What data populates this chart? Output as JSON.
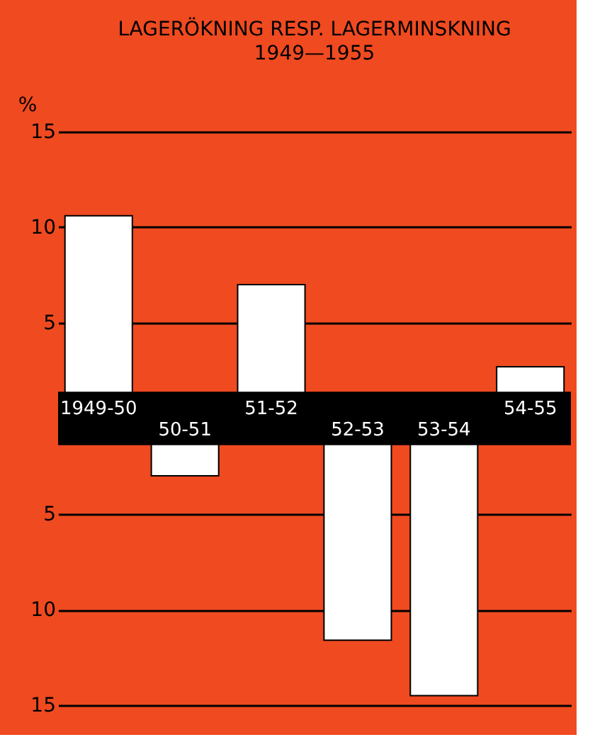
{
  "chart_data": {
    "type": "bar",
    "title": "LAGERÖKNING RESP. LAGERMINSKNING",
    "subtitle": "1949—1955",
    "ylabel": "%",
    "categories": [
      "1949-50",
      "50-51",
      "51-52",
      "52-53",
      "53-54",
      "54-55"
    ],
    "values": [
      10.6,
      -3.0,
      7.0,
      -11.6,
      -14.5,
      2.7
    ],
    "color": "#ffffff",
    "ylim": [
      -15,
      15
    ],
    "yticks": [
      {
        "value": -15,
        "label": "15"
      },
      {
        "value": -10,
        "label": "10"
      },
      {
        "value": -5,
        "label": "5"
      },
      5,
      10,
      15
    ],
    "grid": "y",
    "bands": [
      {
        "axis": "y",
        "from": -1.4,
        "to": 1.4,
        "color": "#000000"
      }
    ]
  }
}
